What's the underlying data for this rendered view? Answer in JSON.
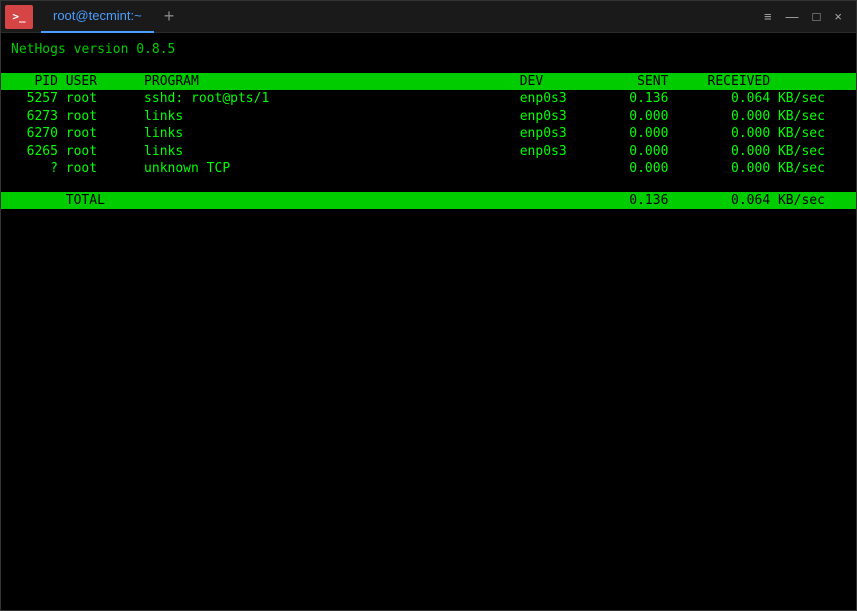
{
  "window": {
    "tab_title": "root@tecmint:~",
    "app_icon_glyph": ">_"
  },
  "nethogs": {
    "version_line": "NetHogs version 0.8.5",
    "headers": {
      "pid": "PID",
      "user": "USER",
      "program": "PROGRAM",
      "dev": "DEV",
      "sent": "SENT",
      "received": "RECEIVED"
    },
    "rows": [
      {
        "pid": "5257",
        "user": "root",
        "program": "sshd: root@pts/1",
        "dev": "enp0s3",
        "sent": "0.136",
        "received": "0.064",
        "unit": "KB/sec"
      },
      {
        "pid": "6273",
        "user": "root",
        "program": "links",
        "dev": "enp0s3",
        "sent": "0.000",
        "received": "0.000",
        "unit": "KB/sec"
      },
      {
        "pid": "6270",
        "user": "root",
        "program": "links",
        "dev": "enp0s3",
        "sent": "0.000",
        "received": "0.000",
        "unit": "KB/sec"
      },
      {
        "pid": "6265",
        "user": "root",
        "program": "links",
        "dev": "enp0s3",
        "sent": "0.000",
        "received": "0.000",
        "unit": "KB/sec"
      },
      {
        "pid": "?",
        "user": "root",
        "program": "unknown TCP",
        "dev": "",
        "sent": "0.000",
        "received": "0.000",
        "unit": "KB/sec"
      }
    ],
    "total": {
      "label": "TOTAL",
      "sent": "0.136",
      "received": "0.064",
      "unit": "KB/sec"
    }
  },
  "colors": {
    "bg": "#000000",
    "green_bright": "#00ff00",
    "green_bar": "#00cc00",
    "titlebar_bg": "#1a1a1a",
    "tab_text": "#4a9eff",
    "app_icon_bg": "#d64545"
  }
}
